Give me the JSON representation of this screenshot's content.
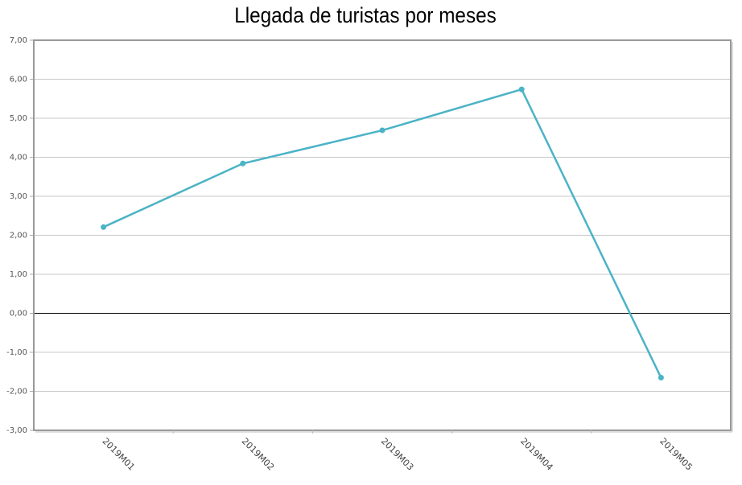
{
  "chart_data": {
    "type": "line",
    "title": "Llegada de turistas por meses",
    "xlabel": "",
    "ylabel": "",
    "categories": [
      "2019M01",
      "2019M02",
      "2019M03",
      "2019M04",
      "2019M05"
    ],
    "series": [
      {
        "name": "Llegada de turistas",
        "values": [
          2.21,
          3.84,
          4.69,
          5.74,
          -1.65
        ],
        "color": "#4bb3c6"
      }
    ],
    "ylim": [
      -3,
      7
    ],
    "yticks": [
      7,
      6,
      5,
      4,
      3,
      2,
      1,
      0,
      -1,
      -2,
      -3
    ],
    "ytick_labels": [
      "7,00",
      "6,00",
      "5,00",
      "4,00",
      "3,00",
      "2,00",
      "1,00",
      "0,00",
      "-1,00",
      "-2,00",
      "-3,00"
    ],
    "grid": true,
    "legend": "none"
  }
}
